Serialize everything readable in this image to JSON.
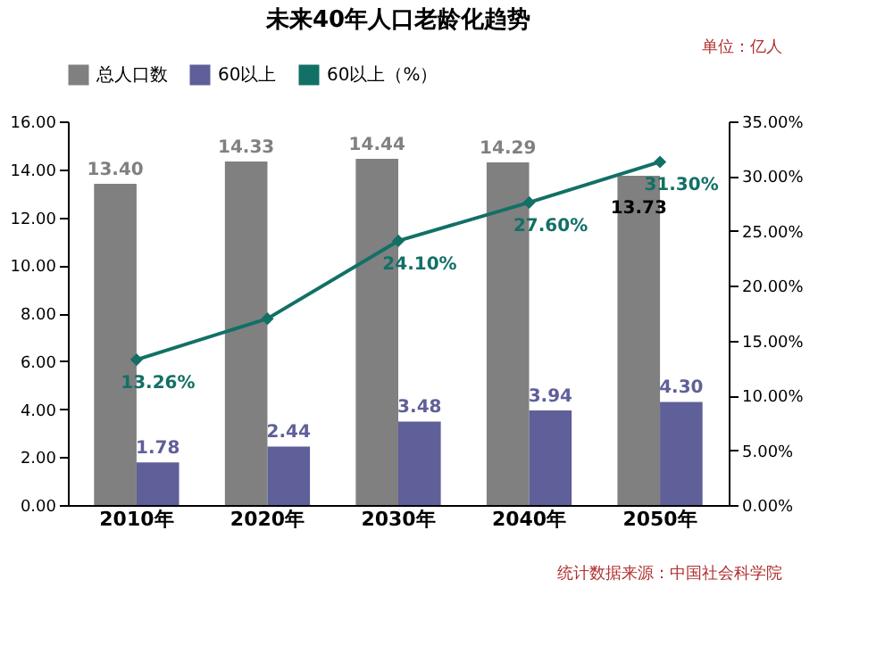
{
  "chart_data": {
    "type": "bar",
    "title": "未来40年人口老龄化趋势",
    "categories": [
      "2010年",
      "2020年",
      "2030年",
      "2040年",
      "2050年"
    ],
    "series": [
      {
        "name": "总人口数",
        "type": "bar",
        "color": "#808080",
        "values": [
          13.4,
          14.33,
          14.44,
          14.29,
          13.73
        ],
        "value_labels": [
          "13.40",
          "14.33",
          "14.44",
          "14.29",
          "13.73"
        ]
      },
      {
        "name": "60以上",
        "type": "bar",
        "color": "#5f5f99",
        "values": [
          1.78,
          2.44,
          3.48,
          3.94,
          4.3
        ],
        "value_labels": [
          "1.78",
          "2.44",
          "3.48",
          "3.94",
          "4.30"
        ]
      },
      {
        "name": "60以上（%）",
        "type": "line",
        "axis": "y2",
        "color": "#127066",
        "values": [
          13.26,
          17.0,
          24.1,
          27.6,
          31.3
        ],
        "value_labels": [
          "13.26%",
          null,
          "24.10%",
          "27.60%",
          "31.30%"
        ]
      }
    ],
    "ylim": [
      0,
      16
    ],
    "yticks": [
      {
        "value": 0,
        "label": "0.00"
      },
      {
        "value": 2,
        "label": "2.00"
      },
      {
        "value": 4,
        "label": "4.00"
      },
      {
        "value": 6,
        "label": "6.00"
      },
      {
        "value": 8,
        "label": "8.00"
      },
      {
        "value": 10,
        "label": "10.00"
      },
      {
        "value": 12,
        "label": "12.00"
      },
      {
        "value": 14,
        "label": "14.00"
      },
      {
        "value": 16,
        "label": "16.00"
      }
    ],
    "y2lim": [
      0,
      35
    ],
    "y2ticks": [
      {
        "value": 0,
        "label": "0.00%"
      },
      {
        "value": 5,
        "label": "5.00%"
      },
      {
        "value": 10,
        "label": "10.00%"
      },
      {
        "value": 15,
        "label": "15.00%"
      },
      {
        "value": 20,
        "label": "20.00%"
      },
      {
        "value": 25,
        "label": "25.00%"
      },
      {
        "value": 30,
        "label": "30.00%"
      },
      {
        "value": 35,
        "label": "35.00%"
      }
    ],
    "marker": "diamond",
    "legend": "top",
    "grid": false,
    "annotations": [
      "单位：亿人",
      "统计数据来源：中国社会科学院"
    ]
  }
}
